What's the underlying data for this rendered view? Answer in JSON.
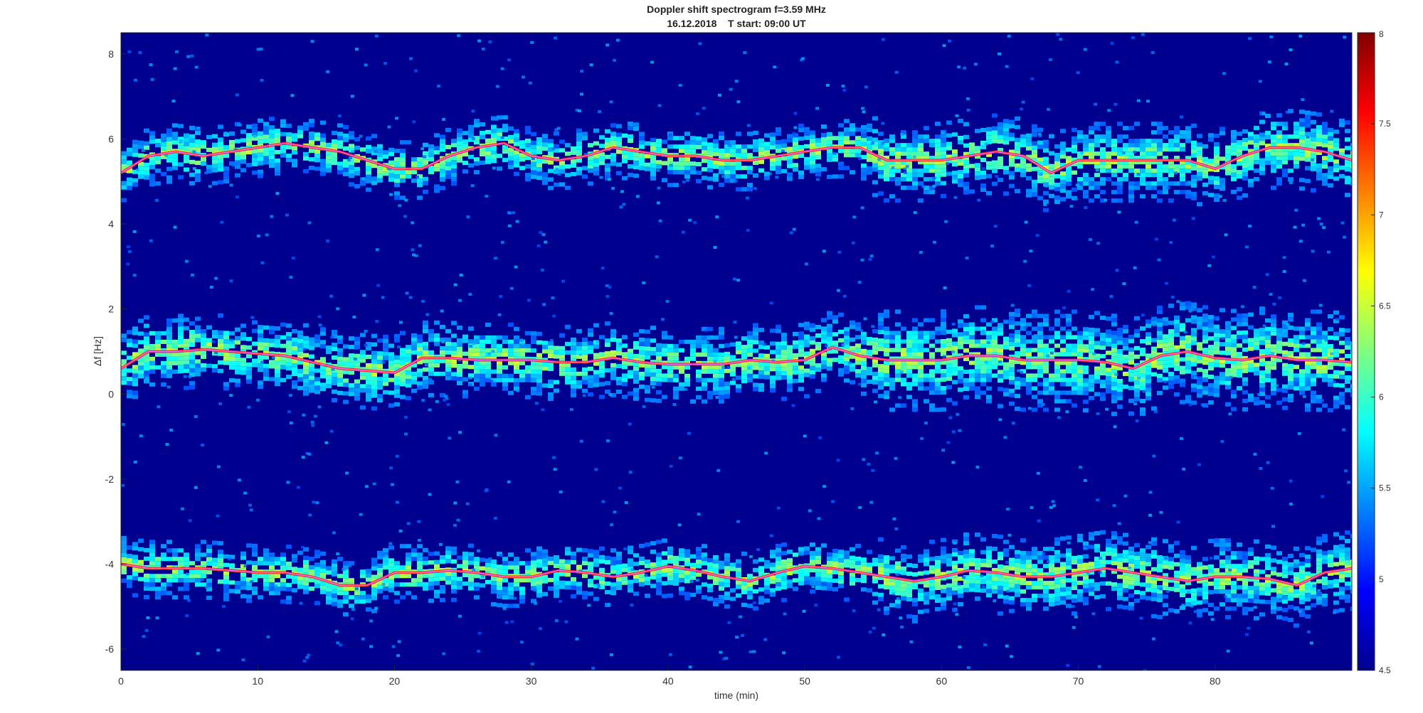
{
  "chart_data": {
    "type": "heatmap",
    "title": "Doppler shift spectrogram f=3.59 MHz",
    "subtitle": "16.12.2018    T start: 09:00 UT",
    "xlabel": "time (min)",
    "ylabel": "Δf [Hz]",
    "xlim": [
      0,
      90
    ],
    "ylim": [
      -6.5,
      8.5
    ],
    "xticks": [
      0,
      10,
      20,
      30,
      40,
      50,
      60,
      70,
      80
    ],
    "yticks": [
      -6,
      -4,
      -2,
      0,
      2,
      4,
      6,
      8
    ],
    "colorbar": {
      "range": [
        4.5,
        8
      ],
      "ticks": [
        4.5,
        5,
        5.5,
        6,
        6.5,
        7,
        7.5,
        8
      ],
      "colormap": "jet"
    },
    "grid": false,
    "series": [
      {
        "x": [
          0,
          2,
          4,
          6,
          8,
          10,
          12,
          14,
          16,
          18,
          20,
          22,
          24,
          26,
          28,
          30,
          32,
          34,
          36,
          38,
          40,
          42,
          44,
          46,
          48,
          50,
          52,
          54,
          56,
          58,
          60,
          62,
          64,
          66,
          68,
          70,
          72,
          74,
          76,
          78,
          80,
          82,
          84,
          86,
          88,
          90
        ],
        "values": [
          5.2,
          5.6,
          5.7,
          5.6,
          5.7,
          5.8,
          5.9,
          5.8,
          5.7,
          5.5,
          5.3,
          5.3,
          5.6,
          5.8,
          5.9,
          5.6,
          5.5,
          5.6,
          5.8,
          5.7,
          5.6,
          5.6,
          5.5,
          5.5,
          5.6,
          5.7,
          5.8,
          5.8,
          5.5,
          5.5,
          5.5,
          5.6,
          5.7,
          5.6,
          5.2,
          5.5,
          5.5,
          5.5,
          5.5,
          5.5,
          5.3,
          5.6,
          5.8,
          5.8,
          5.7,
          5.5
        ]
      },
      {
        "x": [
          0,
          2,
          4,
          6,
          8,
          10,
          12,
          14,
          16,
          18,
          20,
          22,
          24,
          26,
          28,
          30,
          32,
          34,
          36,
          38,
          40,
          42,
          44,
          46,
          48,
          50,
          52,
          54,
          56,
          58,
          60,
          62,
          64,
          66,
          68,
          70,
          72,
          74,
          76,
          78,
          80,
          82,
          84,
          86,
          88,
          90
        ],
        "values": [
          0.6,
          1.0,
          1.0,
          1.05,
          1.0,
          0.95,
          0.9,
          0.75,
          0.6,
          0.55,
          0.5,
          0.85,
          0.85,
          0.8,
          0.8,
          0.8,
          0.75,
          0.75,
          0.85,
          0.75,
          0.7,
          0.7,
          0.7,
          0.8,
          0.75,
          0.8,
          1.1,
          0.9,
          0.8,
          0.8,
          0.8,
          0.9,
          0.9,
          0.8,
          0.8,
          0.8,
          0.75,
          0.6,
          0.9,
          1.0,
          0.85,
          0.8,
          0.9,
          0.8,
          0.8,
          0.75
        ]
      },
      {
        "x": [
          0,
          2,
          4,
          6,
          8,
          10,
          12,
          14,
          16,
          18,
          20,
          22,
          24,
          26,
          28,
          30,
          32,
          34,
          36,
          38,
          40,
          42,
          44,
          46,
          48,
          50,
          52,
          54,
          56,
          58,
          60,
          62,
          64,
          66,
          68,
          70,
          72,
          74,
          76,
          78,
          80,
          82,
          84,
          86,
          88,
          90
        ],
        "values": [
          -4.0,
          -4.1,
          -4.1,
          -4.1,
          -4.15,
          -4.2,
          -4.2,
          -4.3,
          -4.5,
          -4.5,
          -4.2,
          -4.2,
          -4.15,
          -4.2,
          -4.3,
          -4.3,
          -4.15,
          -4.2,
          -4.3,
          -4.2,
          -4.05,
          -4.15,
          -4.3,
          -4.4,
          -4.2,
          -4.05,
          -4.1,
          -4.2,
          -4.3,
          -4.4,
          -4.3,
          -4.15,
          -4.2,
          -4.3,
          -4.3,
          -4.2,
          -4.1,
          -4.2,
          -4.3,
          -4.4,
          -4.3,
          -4.3,
          -4.35,
          -4.5,
          -4.2,
          -4.1
        ]
      }
    ]
  }
}
